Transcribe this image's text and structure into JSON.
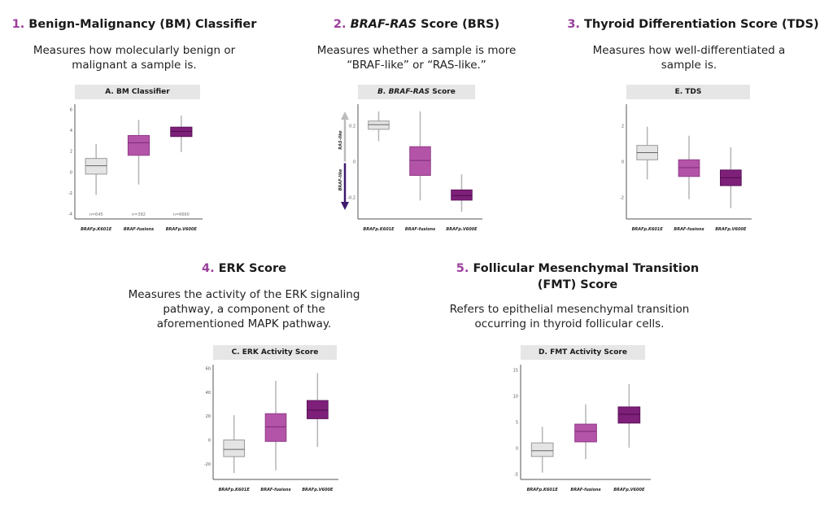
{
  "sections": [
    {
      "num": "1.",
      "title": "Benign-Malignancy (BM) Classifier",
      "desc": [
        "Measures how molecularly benign or",
        "malignant a sample is."
      ]
    },
    {
      "num": "2.",
      "title_italic": "BRAF-RAS",
      "title": " Score (BRS)",
      "desc": [
        "Measures whether a sample is more",
        "“BRAF-like” or “RAS-like.”"
      ]
    },
    {
      "num": "3.",
      "title": "Thyroid Differentiation Score (TDS)",
      "desc": [
        "Measures how well-differentiated a",
        "sample is."
      ]
    },
    {
      "num": "4.",
      "title": "ERK Score",
      "desc": [
        "Measures the activity of the ERK signaling",
        "pathway, a component of the",
        "aforementioned MAPK pathway."
      ]
    },
    {
      "num": "5.",
      "title": "Follicular Mesenchymal Transition",
      "title2": "(FMT) Score",
      "desc": [
        "Refers to epithelial mesenchymal transition",
        "occurring in thyroid follicular cells."
      ]
    }
  ],
  "colors": {
    "accent": "#9b3e9b",
    "K601E": "#e4e4e4",
    "fusions": "#b454a8",
    "V600E": "#7e1f7a"
  },
  "chart_data": [
    {
      "type": "box",
      "title": "A. BM Classifier",
      "categories": [
        "BRAFp.K601E",
        "BRAF-fusions",
        "BRAFp.V600E"
      ],
      "ylim": [
        -4.5,
        6.5
      ],
      "yticks": [
        -4,
        -2,
        0,
        2,
        4,
        6
      ],
      "n_labels": [
        "n=645",
        "n=382",
        "n=6660"
      ],
      "boxes": [
        {
          "min": -2.2,
          "q1": -0.2,
          "median": 0.6,
          "q3": 1.3,
          "max": 2.7
        },
        {
          "min": -1.2,
          "q1": 1.6,
          "median": 2.8,
          "q3": 3.5,
          "max": 5.0
        },
        {
          "min": 1.9,
          "q1": 3.4,
          "median": 3.9,
          "q3": 4.3,
          "max": 5.4
        }
      ]
    },
    {
      "type": "box",
      "title_italic": "B. BRAF-RAS",
      "title": " Score",
      "categories": [
        "BRAFp.K601E",
        "BRAF-fusions",
        "BRAFp.V600E"
      ],
      "ylim": [
        -0.32,
        0.32
      ],
      "yticks": [
        -0.2,
        0.0,
        0.2
      ],
      "side_labels": {
        "up": "RAS-like",
        "down": "BRAF-like"
      },
      "boxes": [
        {
          "min": 0.114,
          "q1": 0.18,
          "median": 0.206,
          "q3": 0.226,
          "max": 0.28
        },
        {
          "min": -0.217,
          "q1": -0.077,
          "median": 0.006,
          "q3": 0.083,
          "max": 0.28
        },
        {
          "min": -0.28,
          "q1": -0.215,
          "median": -0.19,
          "q3": -0.158,
          "max": -0.071
        }
      ]
    },
    {
      "type": "box",
      "title": "E. TDS",
      "categories": [
        "BRAFp.K601E",
        "BRAF-fusions",
        "BRAFp.V600E"
      ],
      "ylim": [
        -3.2,
        3.2
      ],
      "yticks": [
        -2,
        0,
        2
      ],
      "boxes": [
        {
          "min": -1.0,
          "q1": 0.1,
          "median": 0.5,
          "q3": 0.9,
          "max": 1.95
        },
        {
          "min": -2.1,
          "q1": -0.83,
          "median": -0.34,
          "q3": 0.1,
          "max": 1.44
        },
        {
          "min": -2.6,
          "q1": -1.34,
          "median": -0.9,
          "q3": -0.47,
          "max": 0.8
        }
      ]
    },
    {
      "type": "box",
      "title": "C. ERK Activity Score",
      "categories": [
        "BRAFp.K601E",
        "BRAF-fusions",
        "BRAFp.V600E"
      ],
      "ylim": [
        -33,
        63
      ],
      "yticks": [
        -20,
        0,
        20,
        40,
        60
      ],
      "boxes": [
        {
          "min": -27.7,
          "q1": -13.9,
          "median": -7.9,
          "q3": 0,
          "max": 20.8
        },
        {
          "min": -25.4,
          "q1": -1.2,
          "median": 11,
          "q3": 22,
          "max": 49.6
        },
        {
          "min": -5.8,
          "q1": 17.8,
          "median": 25,
          "q3": 33,
          "max": 56
        }
      ]
    },
    {
      "type": "box",
      "title": "D. FMT Activity Score",
      "categories": [
        "BRAFp.K601E",
        "BRAF-fusions",
        "BRAFp.V600E"
      ],
      "ylim": [
        -6,
        16
      ],
      "yticks": [
        -5,
        0,
        5,
        10,
        15
      ],
      "boxes": [
        {
          "min": -4.7,
          "q1": -1.6,
          "median": -0.5,
          "q3": 1.0,
          "max": 4.1
        },
        {
          "min": -2.1,
          "q1": 1.2,
          "median": 3.2,
          "q3": 4.6,
          "max": 8.4
        },
        {
          "min": 0.1,
          "q1": 4.8,
          "median": 6.5,
          "q3": 7.9,
          "max": 12.3
        }
      ]
    }
  ]
}
